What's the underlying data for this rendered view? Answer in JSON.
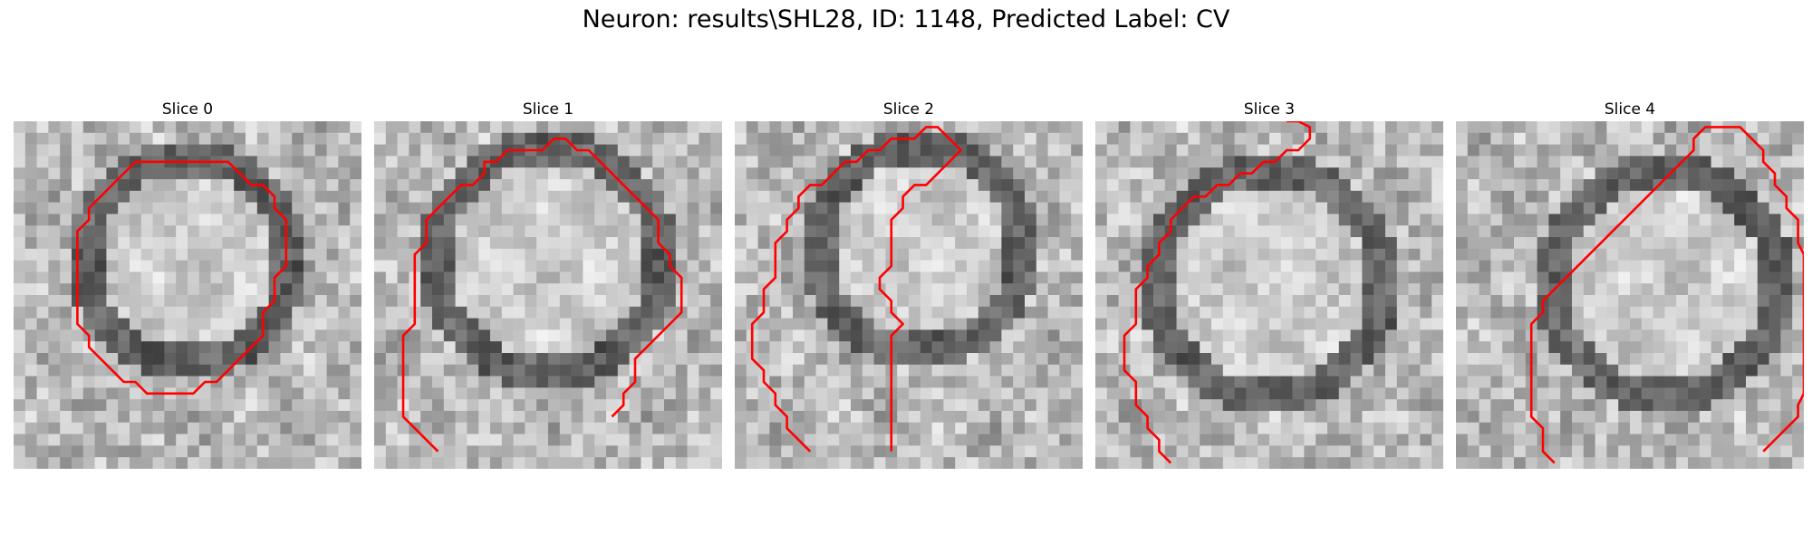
{
  "figure": {
    "title": "Neuron: results\\SHL28, ID: 1148, Predicted Label: CV"
  },
  "slices": [
    {
      "title": "Slice 0",
      "contour": [
        [
          10,
          3
        ],
        [
          8,
          5
        ],
        [
          6,
          7
        ],
        [
          6,
          8
        ],
        [
          5,
          9
        ],
        [
          5,
          17
        ],
        [
          6,
          18
        ],
        [
          6,
          19
        ],
        [
          7,
          20
        ],
        [
          8,
          21
        ],
        [
          9,
          22
        ],
        [
          10,
          22
        ],
        [
          11,
          23
        ],
        [
          15,
          23
        ],
        [
          16,
          22
        ],
        [
          17,
          22
        ],
        [
          18,
          21
        ],
        [
          21,
          18
        ],
        [
          21,
          16
        ],
        [
          22,
          15
        ],
        [
          22,
          13
        ],
        [
          23,
          12
        ],
        [
          23,
          8
        ],
        [
          22,
          7
        ],
        [
          22,
          6
        ],
        [
          21,
          5
        ],
        [
          20,
          5
        ],
        [
          19,
          4
        ],
        [
          18,
          3
        ],
        [
          10,
          3
        ]
      ]
    },
    {
      "title": "Slice 1",
      "contour": [
        [
          5,
          28
        ],
        [
          3,
          26
        ],
        [
          2,
          25
        ],
        [
          2,
          18
        ],
        [
          3,
          17
        ],
        [
          3,
          11
        ],
        [
          4,
          10
        ],
        [
          4,
          8
        ],
        [
          6,
          6
        ],
        [
          7,
          5
        ],
        [
          8,
          5
        ],
        [
          9,
          4
        ],
        [
          9,
          3
        ],
        [
          10,
          3
        ],
        [
          11,
          2
        ],
        [
          14,
          2
        ],
        [
          15,
          1
        ],
        [
          16,
          1
        ],
        [
          17,
          2
        ],
        [
          18,
          2
        ],
        [
          21,
          5
        ],
        [
          22,
          6
        ],
        [
          23,
          7
        ],
        [
          24,
          8
        ],
        [
          24,
          10
        ],
        [
          25,
          11
        ],
        [
          25,
          12
        ],
        [
          26,
          13
        ],
        [
          26,
          16
        ],
        [
          25,
          17
        ],
        [
          24,
          18
        ],
        [
          23,
          19
        ],
        [
          22,
          20
        ],
        [
          22,
          22
        ],
        [
          21,
          23
        ],
        [
          21,
          24
        ],
        [
          20,
          25
        ]
      ]
    },
    {
      "title": "Slice 2",
      "contour": [
        [
          6,
          28
        ],
        [
          4,
          26
        ],
        [
          4,
          25
        ],
        [
          3,
          24
        ],
        [
          3,
          23
        ],
        [
          2,
          22
        ],
        [
          2,
          21
        ],
        [
          1,
          20
        ],
        [
          1,
          17
        ],
        [
          2,
          16
        ],
        [
          2,
          14
        ],
        [
          3,
          13
        ],
        [
          3,
          10
        ],
        [
          4,
          9
        ],
        [
          4,
          8
        ],
        [
          5,
          7
        ],
        [
          5,
          6
        ],
        [
          6,
          5
        ],
        [
          7,
          5
        ],
        [
          9,
          3
        ],
        [
          10,
          3
        ],
        [
          11,
          2
        ],
        [
          12,
          2
        ],
        [
          13,
          1
        ],
        [
          15,
          1
        ],
        [
          16,
          0
        ],
        [
          17,
          0
        ],
        [
          18,
          1
        ],
        [
          19,
          2
        ],
        [
          18,
          3
        ],
        [
          16,
          5
        ],
        [
          15,
          5
        ],
        [
          14,
          6
        ],
        [
          14,
          7
        ],
        [
          13,
          8
        ],
        [
          13,
          12
        ],
        [
          12,
          13
        ],
        [
          12,
          14
        ],
        [
          13,
          15
        ],
        [
          13,
          16
        ],
        [
          14,
          17
        ],
        [
          13,
          18
        ],
        [
          13,
          28
        ]
      ]
    },
    {
      "title": "Slice 3",
      "contour": [
        [
          6,
          29
        ],
        [
          5,
          28
        ],
        [
          5,
          27
        ],
        [
          4,
          26
        ],
        [
          4,
          25
        ],
        [
          3,
          24
        ],
        [
          3,
          22
        ],
        [
          2,
          21
        ],
        [
          2,
          18
        ],
        [
          3,
          17
        ],
        [
          3,
          14
        ],
        [
          4,
          13
        ],
        [
          4,
          12
        ],
        [
          5,
          11
        ],
        [
          5,
          10
        ],
        [
          6,
          9
        ],
        [
          6,
          8
        ],
        [
          7,
          7
        ],
        [
          8,
          6
        ],
        [
          9,
          6
        ],
        [
          10,
          5
        ],
        [
          11,
          5
        ],
        [
          12,
          4
        ],
        [
          13,
          4
        ],
        [
          14,
          3
        ],
        [
          15,
          3
        ],
        [
          16,
          2
        ],
        [
          17,
          2
        ],
        [
          18,
          1
        ],
        [
          18,
          0
        ],
        [
          17,
          -1
        ],
        [
          17,
          -2
        ],
        [
          16,
          -3
        ],
        [
          16,
          -8
        ]
      ]
    },
    {
      "title": "Slice 4",
      "contour": [
        [
          8,
          29
        ],
        [
          7,
          28
        ],
        [
          7,
          26
        ],
        [
          6,
          25
        ],
        [
          6,
          17
        ],
        [
          7,
          16
        ],
        [
          7,
          15
        ],
        [
          8,
          14
        ],
        [
          9,
          13
        ],
        [
          11,
          11
        ],
        [
          12,
          10
        ],
        [
          13,
          9
        ],
        [
          14,
          8
        ],
        [
          15,
          7
        ],
        [
          16,
          6
        ],
        [
          17,
          5
        ],
        [
          18,
          4
        ],
        [
          19,
          3
        ],
        [
          20,
          2
        ],
        [
          20,
          1
        ],
        [
          21,
          0
        ],
        [
          24,
          0
        ],
        [
          25,
          1
        ],
        [
          26,
          2
        ],
        [
          26,
          3
        ],
        [
          27,
          4
        ],
        [
          27,
          5
        ],
        [
          28,
          6
        ],
        [
          28,
          7
        ],
        [
          29,
          8
        ],
        [
          29,
          9
        ],
        [
          29,
          10
        ],
        [
          30,
          11
        ],
        [
          30,
          12
        ],
        [
          31,
          13
        ],
        [
          31,
          22
        ],
        [
          30,
          23
        ],
        [
          29,
          24
        ],
        [
          29,
          25
        ],
        [
          28,
          26
        ],
        [
          27,
          27
        ],
        [
          26,
          28
        ]
      ]
    }
  ]
}
